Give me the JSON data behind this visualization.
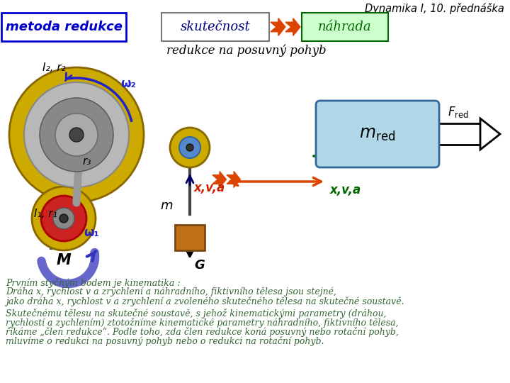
{
  "title": "Dynamika I, 10. přednáška",
  "title_color": "#000000",
  "bg_color": "#ffffff",
  "header_box_text": "metoda redukce",
  "header_box_color": "#0000cc",
  "header_box_bg": "#ffffff",
  "skutecnost_text": "skutečnost",
  "skutecnost_color": "#000080",
  "nahrada_text": "náhrada",
  "nahrada_color": "#006600",
  "nahrada_box_bg": "#ccffcc",
  "subtitle": "redukce na posuvný pohyb",
  "subtitle_color": "#000000",
  "label_I2r2": "I₂, r₂",
  "label_omega2": "ω₂",
  "label_r3": "r₃",
  "label_I1r1": "I₁, r₁",
  "label_omega1": "ω₁",
  "label_M": "M",
  "label_m": "m",
  "label_G": "G",
  "label_xva_left": "x,v,a",
  "label_xva_right": "x,v,a",
  "label_mred": "m_red",
  "label_Fred": "F_red",
  "text1": "Prvním styčným bodem je kinematika :",
  "text2": "Dráha x, rychlost v a zrychlení a náhradního, fiktivního tělesa jsou stejné,",
  "text3": "jako dráha x, rychlost v a zrychlení a zvoleného skutečného tělesa na skutečné soustavě.",
  "text4": "Skutečnému tělesu na skutečné soustavě, s jehož kinematickými parametry (dráhou,",
  "text5": "rychlostí a zychlením) ztotožníme kinematické parametry náhradního, fiktivního tělesa,",
  "text6": "říkáme „člen redukce“. Podle toho, zda člen redukce koná posuvný nebo rotační pohyb,",
  "text7": "mluvíme o redukci na posuvný pohyb nebo o redukci na rotační pohyb.",
  "arrow_orange": "#dd4400",
  "arrow_green": "#006600",
  "disk_color": "#ccaa00",
  "blue_arrow_color": "#2222aa",
  "box_mred_bg": "#b0d8e8",
  "text_green": "#336633"
}
